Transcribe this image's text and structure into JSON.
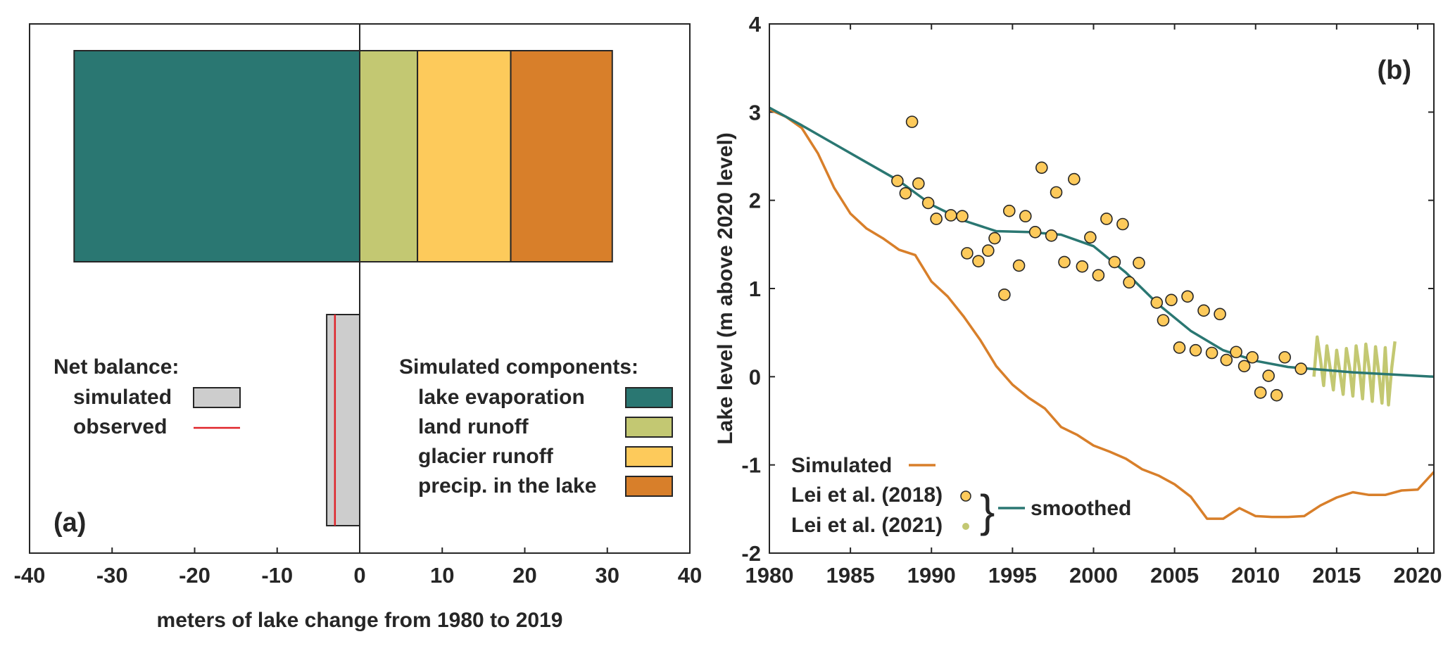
{
  "chart_data": [
    {
      "type": "bar",
      "orientation": "horizontal-stacked",
      "panel_label": "(a)",
      "xlabel": "meters of lake change from 1980 to 2019",
      "xlim": [
        -40,
        40
      ],
      "xticks": [
        "-40",
        "-30",
        "-20",
        "-10",
        "0",
        "10",
        "20",
        "30",
        "40"
      ],
      "components": [
        {
          "name": "lake evaporation",
          "value": -34.6,
          "color": "#2a7772"
        },
        {
          "name": "land runoff",
          "value": 7.0,
          "color": "#c3c872"
        },
        {
          "name": "glacier runoff",
          "value": 11.3,
          "color": "#fdca5b"
        },
        {
          "name": "precip. in the lake",
          "value": 12.3,
          "color": "#d87f2a"
        }
      ],
      "net_balance": {
        "simulated": -4.0,
        "observed": -3.0,
        "simulated_color": "#cdcdcd",
        "observed_color": "#e0242a"
      },
      "legend_net": {
        "title": "Net balance:",
        "items": [
          "simulated",
          "observed"
        ]
      },
      "legend_components": {
        "title": "Simulated components:"
      }
    },
    {
      "type": "line",
      "panel_label": "(b)",
      "xlabel": "",
      "ylabel": "Lake level (m above 2020 level)",
      "xlim": [
        1980,
        2021
      ],
      "ylim": [
        -2,
        4
      ],
      "xticks": [
        "1980",
        "1985",
        "1990",
        "1995",
        "2000",
        "2005",
        "2010",
        "2015",
        "2020"
      ],
      "yticks": [
        "-2",
        "-1",
        "0",
        "1",
        "2",
        "3",
        "4"
      ],
      "series": [
        {
          "name": "Simulated",
          "color": "#d87f2a",
          "x": [
            1980,
            1981,
            1982,
            1983,
            1984,
            1985,
            1986,
            1987,
            1988,
            1989,
            1990,
            1991,
            1992,
            1993,
            1994,
            1995,
            1996,
            1997,
            1998,
            1999,
            2000,
            2001,
            2002,
            2003,
            2004,
            2005,
            2006,
            2007,
            2008,
            2009,
            2010,
            2011,
            2012,
            2013,
            2014,
            2015,
            2016,
            2017,
            2018,
            2019,
            2020,
            2021
          ],
          "y": [
            3.03,
            2.95,
            2.82,
            2.53,
            2.14,
            1.85,
            1.68,
            1.57,
            1.44,
            1.38,
            1.08,
            0.91,
            0.68,
            0.42,
            0.12,
            -0.09,
            -0.24,
            -0.36,
            -0.57,
            -0.66,
            -0.78,
            -0.85,
            -0.93,
            -1.05,
            -1.12,
            -1.22,
            -1.36,
            -1.61,
            -1.61,
            -1.49,
            -1.58,
            -1.59,
            -1.59,
            -1.58,
            -1.46,
            -1.37,
            -1.31,
            -1.34,
            -1.34,
            -1.29,
            -1.28,
            -1.08
          ]
        },
        {
          "name": "Lei et al. (2018)",
          "color": "#fdca5b",
          "x": [
            1987.9,
            1988.4,
            1988.8,
            1989.2,
            1989.8,
            1990.3,
            1991.2,
            1991.9,
            1992.2,
            1992.9,
            1993.5,
            1993.9,
            1994.5,
            1994.8,
            1995.4,
            1995.8,
            1996.4,
            1996.8,
            1997.4,
            1997.7,
            1998.2,
            1998.8,
            1999.3,
            1999.8,
            2000.3,
            2000.8,
            2001.3,
            2001.8,
            2002.2,
            2002.8,
            2003.9,
            2004.3,
            2004.8,
            2005.3,
            2005.8,
            2006.3,
            2006.8,
            2007.3,
            2007.8,
            2008.2,
            2008.8,
            2009.3,
            2009.8,
            2010.3,
            2010.8,
            2011.3,
            2011.8,
            2012.8
          ],
          "y": [
            2.22,
            2.08,
            2.89,
            2.19,
            1.97,
            1.79,
            1.83,
            1.82,
            1.4,
            1.31,
            1.43,
            1.57,
            0.93,
            1.88,
            1.26,
            1.82,
            1.64,
            2.37,
            1.6,
            2.09,
            1.3,
            2.24,
            1.25,
            1.58,
            1.15,
            1.79,
            1.3,
            1.73,
            1.07,
            1.29,
            0.84,
            0.64,
            0.87,
            0.33,
            0.91,
            0.3,
            0.75,
            0.27,
            0.71,
            0.19,
            0.28,
            0.12,
            0.22,
            -0.18,
            0.01,
            -0.21,
            0.22,
            0.09
          ]
        },
        {
          "name": "Lei et al. (2021)",
          "color": "#c3c872",
          "x": [
            2013.6,
            2013.8,
            2014.0,
            2014.2,
            2014.4,
            2014.6,
            2014.8,
            2015.0,
            2015.2,
            2015.4,
            2015.6,
            2015.8,
            2016.0,
            2016.2,
            2016.4,
            2016.6,
            2016.8,
            2017.0,
            2017.2,
            2017.4,
            2017.6,
            2017.8,
            2018.0,
            2018.2,
            2018.4,
            2018.6
          ],
          "y": [
            0.0,
            0.45,
            0.2,
            -0.1,
            0.35,
            0.1,
            -0.15,
            0.3,
            0.05,
            -0.2,
            0.32,
            0.1,
            -0.22,
            0.35,
            0.1,
            -0.25,
            0.37,
            0.1,
            -0.28,
            0.34,
            0.05,
            -0.3,
            0.33,
            -0.32,
            0.1,
            0.4
          ]
        },
        {
          "name": "smoothed",
          "color": "#2a7772",
          "x": [
            1980,
            1982,
            1984,
            1986,
            1988,
            1990,
            1992,
            1994,
            1996,
            1998,
            2000,
            2002,
            2004,
            2006,
            2008,
            2010,
            2012,
            2014,
            2016,
            2018,
            2020,
            2021
          ],
          "y": [
            3.05,
            2.85,
            2.64,
            2.43,
            2.22,
            1.95,
            1.77,
            1.65,
            1.64,
            1.61,
            1.48,
            1.18,
            0.82,
            0.52,
            0.3,
            0.18,
            0.11,
            0.08,
            0.05,
            0.03,
            0.01,
            0.0
          ]
        }
      ],
      "legend": {
        "simulated_label": "Simulated",
        "lei2018_label": "Lei et al. (2018)",
        "lei2021_label": "Lei et al. (2021)",
        "brace": "}",
        "smoothed_label": "smoothed"
      }
    }
  ]
}
